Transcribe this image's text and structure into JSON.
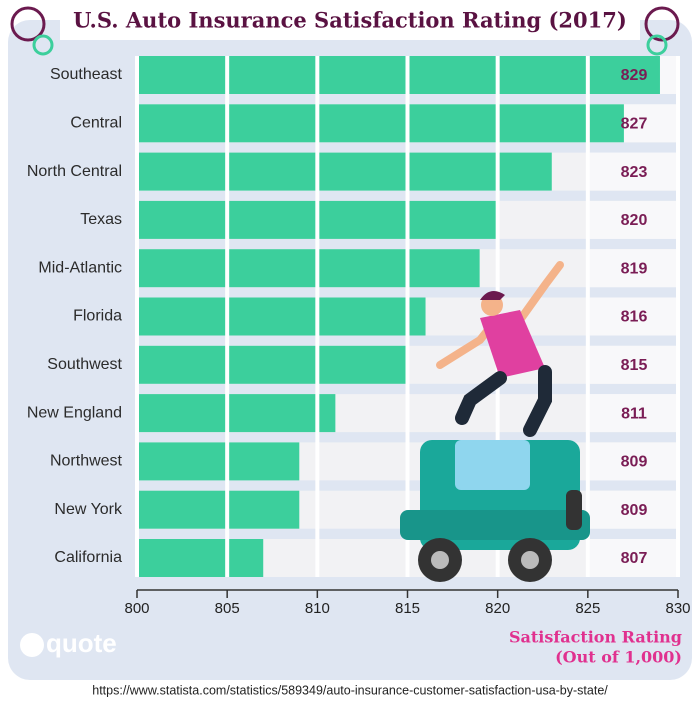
{
  "chart_data": {
    "type": "hbar",
    "title": "U.S. Auto Insurance Satisfaction Rating (2017)",
    "categories": [
      "Southeast",
      "Central",
      "North Central",
      "Texas",
      "Mid-Atlantic",
      "Florida",
      "Southwest",
      "New England",
      "Northwest",
      "New York",
      "California"
    ],
    "values": [
      829,
      827,
      823,
      820,
      819,
      816,
      815,
      811,
      809,
      809,
      807
    ],
    "color": "#3ccf9c",
    "xlim": [
      800,
      830
    ],
    "xticks": [
      800,
      805,
      810,
      815,
      820,
      825,
      830
    ],
    "grid": true,
    "xlabel": [
      "Satisfaction Rating",
      "(Out of 1,000)"
    ],
    "logo": "quote",
    "source": "https://www.statista.com/statistics/589349/auto-insurance-customer-satisfaction-usa-by-state/"
  }
}
